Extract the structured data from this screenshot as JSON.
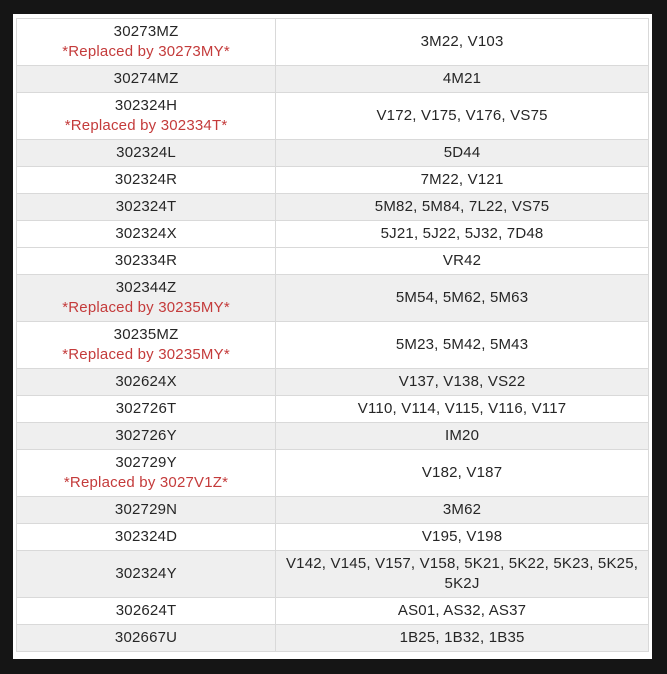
{
  "colors": {
    "frame_background": "#151515",
    "table_background": "#ffffff",
    "row_alt_background": "#efefef",
    "cell_border": "#d9d9d9",
    "text": "#262626",
    "replaced_text": "#c43b3b"
  },
  "table": {
    "columns": [
      "part_number",
      "models"
    ],
    "rows": [
      {
        "part": "30273MZ",
        "replaced": "*Replaced by 30273MY*",
        "models": "3M22, V103",
        "shaded": false
      },
      {
        "part": "30274MZ",
        "replaced": "",
        "models": "4M21",
        "shaded": true
      },
      {
        "part": "302324H",
        "replaced": "*Replaced by 302334T*",
        "models": "V172, V175, V176, VS75",
        "shaded": false
      },
      {
        "part": "302324L",
        "replaced": "",
        "models": "5D44",
        "shaded": true
      },
      {
        "part": "302324R",
        "replaced": "",
        "models": "7M22, V121",
        "shaded": false
      },
      {
        "part": "302324T",
        "replaced": "",
        "models": "5M82, 5M84, 7L22, VS75",
        "shaded": true
      },
      {
        "part": "302324X",
        "replaced": "",
        "models": "5J21, 5J22, 5J32, 7D48",
        "shaded": false
      },
      {
        "part": "302334R",
        "replaced": "",
        "models": "VR42",
        "shaded": false
      },
      {
        "part": "302344Z",
        "replaced": "*Replaced by 30235MY*",
        "models": "5M54, 5M62, 5M63",
        "shaded": true
      },
      {
        "part": "30235MZ",
        "replaced": "*Replaced by 30235MY*",
        "models": "5M23, 5M42, 5M43",
        "shaded": false
      },
      {
        "part": "302624X",
        "replaced": "",
        "models": "V137, V138, VS22",
        "shaded": true
      },
      {
        "part": "302726T",
        "replaced": "",
        "models": "V110, V114, V115, V116, V117",
        "shaded": false
      },
      {
        "part": "302726Y",
        "replaced": "",
        "models": "IM20",
        "shaded": true
      },
      {
        "part": "302729Y",
        "replaced": "*Replaced by 3027V1Z*",
        "models": "V182, V187",
        "shaded": false
      },
      {
        "part": "302729N",
        "replaced": "",
        "models": "3M62",
        "shaded": true
      },
      {
        "part": "302324D",
        "replaced": "",
        "models": "V195, V198",
        "shaded": false
      },
      {
        "part": "302324Y",
        "replaced": "",
        "models": "V142, V145, V157, V158, 5K21, 5K22, 5K23, 5K25, 5K2J",
        "shaded": true
      },
      {
        "part": "302624T",
        "replaced": "",
        "models": "AS01, AS32, AS37",
        "shaded": false
      },
      {
        "part": "302667U",
        "replaced": "",
        "models": "1B25, 1B32, 1B35",
        "shaded": true
      }
    ]
  }
}
